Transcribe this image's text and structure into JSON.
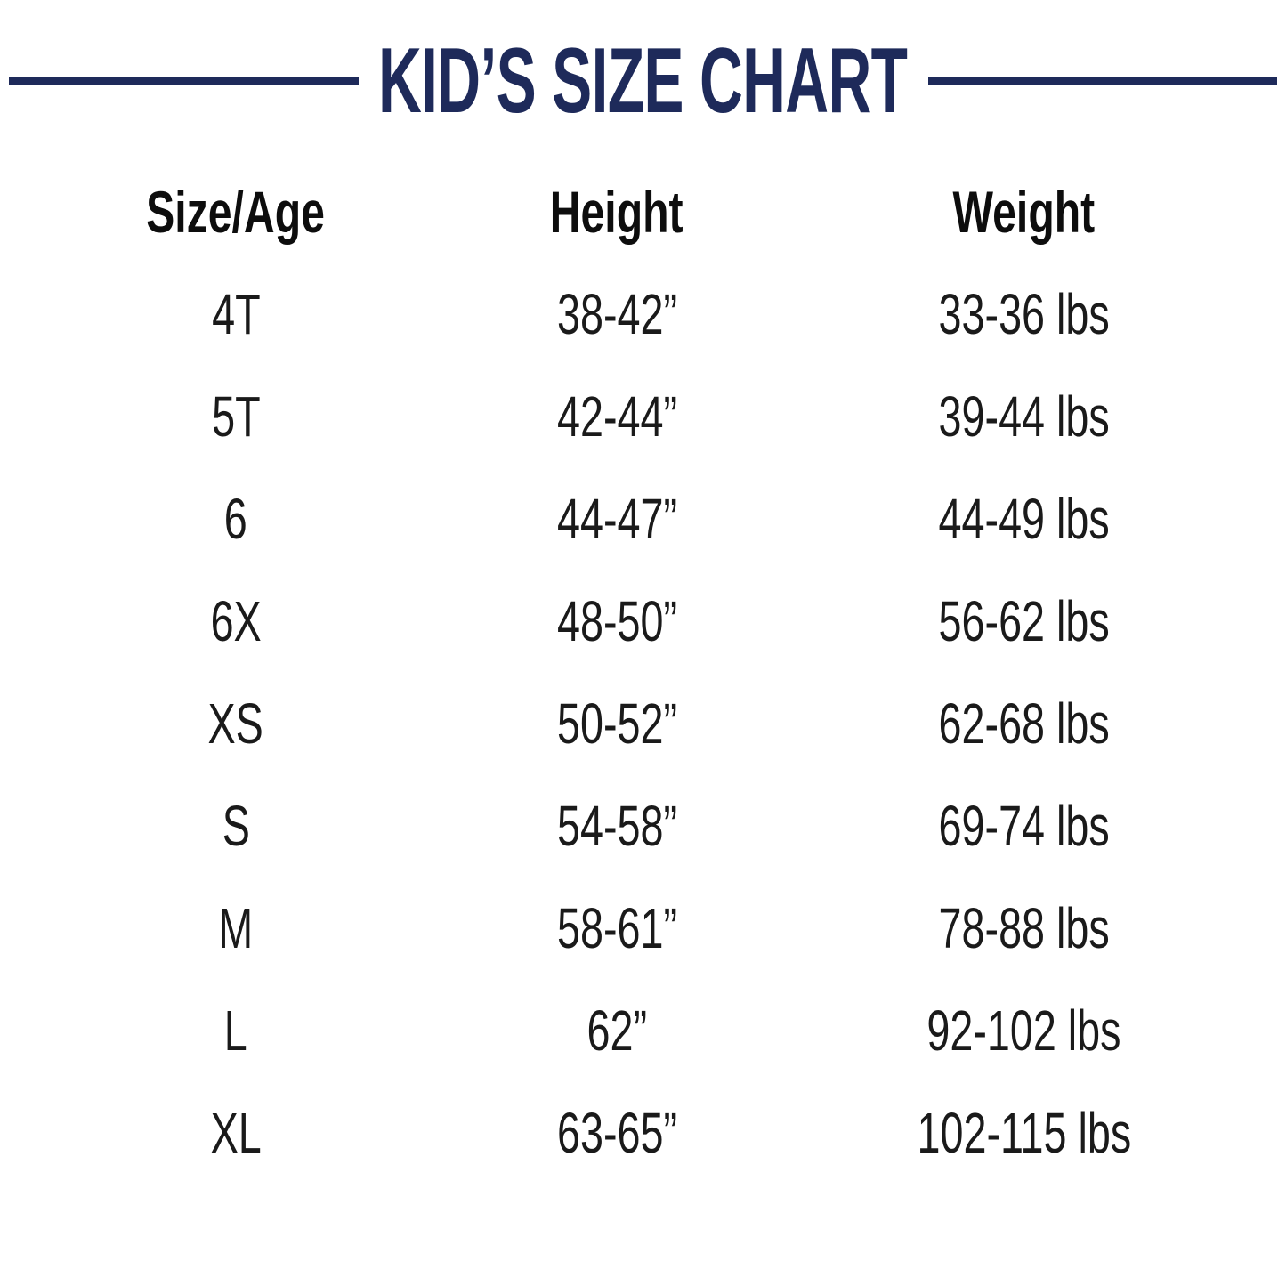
{
  "title": "KID’S SIZE CHART",
  "colors": {
    "accent_navy": "#1e2a5a",
    "body_text": "#1a1a1a"
  },
  "chart_data": {
    "type": "table",
    "title": "KID’S SIZE CHART",
    "columns": [
      "Size/Age",
      "Height",
      "Weight"
    ],
    "rows": [
      [
        "4T",
        "38-42”",
        "33-36 lbs"
      ],
      [
        "5T",
        "42-44”",
        "39-44 lbs"
      ],
      [
        "6",
        "44-47”",
        "44-49 lbs"
      ],
      [
        "6X",
        "48-50”",
        "56-62 lbs"
      ],
      [
        "XS",
        "50-52”",
        "62-68 lbs"
      ],
      [
        "S",
        "54-58”",
        "69-74 lbs"
      ],
      [
        "M",
        "58-61”",
        "78-88 lbs"
      ],
      [
        "L",
        "62”",
        "92-102 lbs"
      ],
      [
        "XL",
        "63-65”",
        "102-115 lbs"
      ]
    ]
  }
}
